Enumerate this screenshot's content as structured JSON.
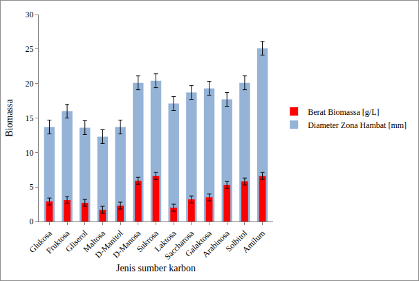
{
  "chart_data": {
    "type": "bar",
    "x_label": "Jenis sumber karbon",
    "y_label": "Biomassa",
    "categories": [
      "Glukosa",
      "Fruktosa",
      "Gliserol",
      "Maltosa",
      "D-Manitol",
      "D-Manosa",
      "Sukrosa",
      "Laktosa",
      "Saccharosa",
      "Galaktosa",
      "Arabinosa",
      "Solbitol",
      "Amilum"
    ],
    "series": [
      {
        "name": "Berat Biomassa [g/L]",
        "color": "#ff0000",
        "values": [
          2.9,
          3.1,
          2.7,
          1.7,
          2.3,
          5.9,
          6.6,
          2.0,
          3.2,
          3.5,
          5.3,
          5.8,
          6.6
        ],
        "error": [
          0.5,
          0.5,
          0.5,
          0.5,
          0.5,
          0.5,
          0.5,
          0.5,
          0.5,
          0.5,
          0.5,
          0.5,
          0.5
        ]
      },
      {
        "name": "Diameter Zona Hambat [mm]",
        "color": "#95b3d7",
        "values": [
          13.7,
          16.0,
          13.6,
          12.3,
          13.7,
          20.1,
          20.4,
          17.1,
          18.7,
          19.3,
          17.7,
          20.1,
          25.1
        ],
        "error": [
          1.0,
          1.0,
          1.0,
          1.0,
          1.0,
          1.0,
          1.0,
          1.0,
          1.0,
          1.0,
          1.0,
          1.0,
          1.0
        ]
      }
    ],
    "ylim": [
      0,
      30
    ],
    "yticks": [
      0,
      5,
      10,
      15,
      20,
      25,
      30
    ],
    "grid": false,
    "legend": "right"
  }
}
